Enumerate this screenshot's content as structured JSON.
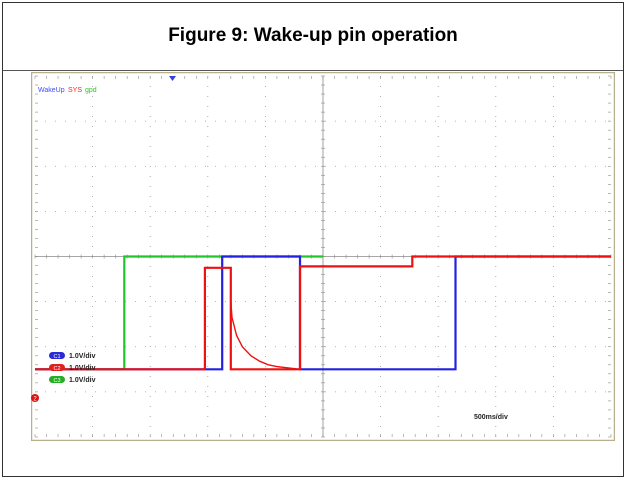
{
  "figure": {
    "title": "Figure 9: Wake-up pin operation"
  },
  "chart_data": {
    "type": "line",
    "top_labels": [
      {
        "text": "WakeUp",
        "color": "#3b4dff"
      },
      {
        "text": "SYS",
        "color": "#ff2020"
      },
      {
        "text": "gpd",
        "color": "#22cc22"
      }
    ],
    "channels": [
      {
        "badge": "C1",
        "scale": "1.0V/div",
        "color": "#2b2bd6"
      },
      {
        "badge": "C2",
        "scale": "1.0V/div",
        "color": "#e02020"
      },
      {
        "badge": "C3",
        "scale": "1.0V/div",
        "color": "#22b022"
      }
    ],
    "timebase": "500ms/div",
    "x_divisions": 10,
    "y_divisions": 8,
    "xlim": [
      0,
      10
    ],
    "ylim": [
      -4,
      4
    ],
    "ground_marker": "2",
    "series": [
      {
        "key": "green",
        "color": "#22c52a",
        "x": [
          0,
          1.55,
          1.55,
          5.0
        ],
        "y": [
          -2.5,
          -2.5,
          0,
          0
        ]
      },
      {
        "key": "blue",
        "color": "#2222e0",
        "x": [
          0,
          3.25,
          3.25,
          4.6,
          4.6,
          7.3,
          7.3,
          10
        ],
        "y": [
          -2.5,
          -2.5,
          0,
          0,
          -2.5,
          -2.5,
          0,
          0
        ]
      },
      {
        "key": "red",
        "color": "#ee1111",
        "x": [
          0,
          2.95,
          2.95,
          3.4,
          3.4,
          4.6,
          4.6,
          6.55,
          6.55,
          10
        ],
        "y": [
          -2.5,
          -2.5,
          -0.25,
          -0.25,
          -2.5,
          -2.5,
          -0.22,
          -0.22,
          0,
          0
        ]
      },
      {
        "key": "red-decay",
        "color": "#ee1111",
        "x": [
          3.4,
          3.42,
          3.5,
          3.6,
          3.75,
          3.9,
          4.05,
          4.2,
          4.4,
          4.6
        ],
        "y": [
          -1.0,
          -1.35,
          -1.75,
          -2.0,
          -2.2,
          -2.32,
          -2.4,
          -2.44,
          -2.47,
          -2.5
        ]
      }
    ]
  }
}
